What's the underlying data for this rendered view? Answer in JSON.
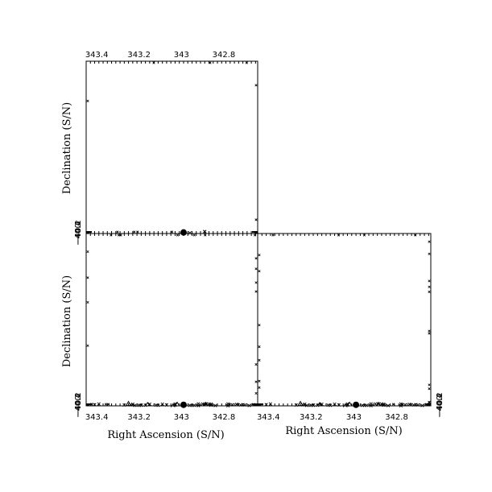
{
  "chart_data": [
    {
      "type": "scatter",
      "panel": "top-left",
      "xlabel": "",
      "ylabel": "Declination (S/N)",
      "xlim": [
        343.45,
        342.64
      ],
      "ylim": [
        -40.47,
        0.0
      ],
      "x_tick_labels": [
        "343.4",
        "343.2",
        "343",
        "342.8"
      ],
      "x_ticks": [
        343.4,
        343.2,
        343.0,
        342.8
      ],
      "x_tick_side": "top",
      "y_tick_labels": [
        "-40",
        "-40.2",
        "-40.4"
      ],
      "y_ticks": [
        -40.0,
        -40.2,
        -40.4
      ],
      "points": [
        {
          "x": 342.89,
          "y": -39.99,
          "marker": "x"
        },
        {
          "x": 342.89,
          "y": -40.01,
          "marker": "x"
        },
        {
          "x": 342.96,
          "y": -40.335,
          "marker": "x"
        },
        {
          "x": 342.99,
          "y": -40.215,
          "marker": "big-dot"
        }
      ]
    },
    {
      "type": "scatter",
      "panel": "bottom-left",
      "xlabel": "Right Ascension (S/N)",
      "ylabel": "Declination (S/N)",
      "xlim": [
        343.45,
        342.64
      ],
      "ylim": [
        -40.47,
        0.0
      ],
      "x_tick_labels": [
        "343.4",
        "343.2",
        "343",
        "342.8"
      ],
      "x_ticks": [
        343.4,
        343.2,
        343.0,
        342.8
      ],
      "x_tick_side": "bottom",
      "y_tick_labels": [
        "-40",
        "-40.2",
        "-40.4"
      ],
      "y_ticks": [
        -40.0,
        -40.2,
        -40.4
      ],
      "points": []
    },
    {
      "type": "scatter",
      "panel": "bottom-right",
      "xlabel": "Right Ascension (S/N)",
      "ylabel": "",
      "xlim": [
        343.45,
        342.64
      ],
      "ylim": [
        -40.47,
        0.0
      ],
      "x_tick_labels": [
        "343.4",
        "343.2",
        "343",
        "342.8"
      ],
      "x_ticks": [
        343.4,
        343.2,
        343.0,
        342.8
      ],
      "x_tick_side": "bottom",
      "y_tick_labels": [
        "-40",
        "-40.2",
        "-40.4"
      ],
      "y_ticks": [
        -40.0,
        -40.2,
        -40.4
      ],
      "y_tick_side": "right",
      "points": []
    }
  ],
  "shared_bottom_points": [
    {
      "x": 343.39,
      "y": -40.02,
      "marker": "x"
    },
    {
      "x": 343.25,
      "y": -40.015,
      "marker": "tri"
    },
    {
      "x": 343.23,
      "y": -40.075,
      "marker": "x"
    },
    {
      "x": 343.16,
      "y": -40.07,
      "marker": "caret"
    },
    {
      "x": 343.15,
      "y": -40.065,
      "marker": "x"
    },
    {
      "x": 343.09,
      "y": -40.06,
      "marker": "x"
    },
    {
      "x": 343.03,
      "y": -40.01,
      "marker": "x"
    },
    {
      "x": 343.02,
      "y": -40.01,
      "marker": "caret"
    },
    {
      "x": 342.99,
      "y": -39.995,
      "marker": "x"
    },
    {
      "x": 342.92,
      "y": -40.005,
      "marker": "x"
    },
    {
      "x": 342.9,
      "y": -40.015,
      "marker": "x"
    },
    {
      "x": 342.885,
      "y": -40.025,
      "marker": "x"
    },
    {
      "x": 342.885,
      "y": -40.035,
      "marker": "caret"
    },
    {
      "x": 342.87,
      "y": -40.03,
      "marker": "x"
    },
    {
      "x": 342.86,
      "y": -40.035,
      "marker": "x"
    },
    {
      "x": 342.78,
      "y": -40.01,
      "marker": "x"
    },
    {
      "x": 342.74,
      "y": -40.115,
      "marker": "x"
    },
    {
      "x": 342.71,
      "y": -40.175,
      "marker": "x"
    },
    {
      "x": 342.72,
      "y": -40.27,
      "marker": "x"
    },
    {
      "x": 342.66,
      "y": -40.185,
      "marker": "x"
    },
    {
      "x": 342.68,
      "y": -40.39,
      "marker": "x"
    },
    {
      "x": 343.41,
      "y": -40.185,
      "marker": "x"
    },
    {
      "x": 343.27,
      "y": -40.275,
      "marker": "x"
    },
    {
      "x": 343.24,
      "y": -40.24,
      "marker": "x"
    },
    {
      "x": 343.19,
      "y": -40.275,
      "marker": "x"
    },
    {
      "x": 343.2,
      "y": -40.34,
      "marker": "x"
    },
    {
      "x": 343.19,
      "y": -40.35,
      "marker": "x"
    },
    {
      "x": 343.17,
      "y": -40.335,
      "marker": "x"
    },
    {
      "x": 343.22,
      "y": -40.365,
      "marker": "x"
    },
    {
      "x": 343.2,
      "y": -40.36,
      "marker": "x"
    },
    {
      "x": 343.12,
      "y": -40.305,
      "marker": "x"
    },
    {
      "x": 343.11,
      "y": -40.345,
      "marker": "x"
    },
    {
      "x": 343.07,
      "y": -40.255,
      "marker": "x"
    },
    {
      "x": 343.03,
      "y": -40.3,
      "marker": "x"
    },
    {
      "x": 343.04,
      "y": -40.385,
      "marker": "caret"
    },
    {
      "x": 342.99,
      "y": -40.225,
      "marker": "big-dot"
    },
    {
      "x": 342.96,
      "y": -40.35,
      "marker": "x"
    },
    {
      "x": 342.94,
      "y": -40.345,
      "marker": "x"
    },
    {
      "x": 342.95,
      "y": -40.37,
      "marker": "x"
    },
    {
      "x": 342.86,
      "y": -40.33,
      "marker": "x"
    },
    {
      "x": 342.92,
      "y": -40.415,
      "marker": "x"
    },
    {
      "x": 342.84,
      "y": -40.41,
      "marker": "x"
    },
    {
      "x": 342.78,
      "y": -40.445,
      "marker": "x"
    },
    {
      "x": 342.76,
      "y": -40.2,
      "marker": "x"
    },
    {
      "x": 342.7,
      "y": -40.255,
      "marker": "x"
    }
  ],
  "labels": {
    "ra_top": "Right Ascension (S/N)",
    "ra_bottom_left": "Right Ascension (S/N)",
    "ra_bottom_right": "Right Ascension (S/N)",
    "dec_top": "Declination (S/N)",
    "dec_bottom": "Declination (S/N)"
  },
  "tick_text": {
    "x": [
      "343.4",
      "343.2",
      "343",
      "342.8"
    ],
    "y": [
      "−40",
      "−40.2",
      "−40.4"
    ]
  }
}
